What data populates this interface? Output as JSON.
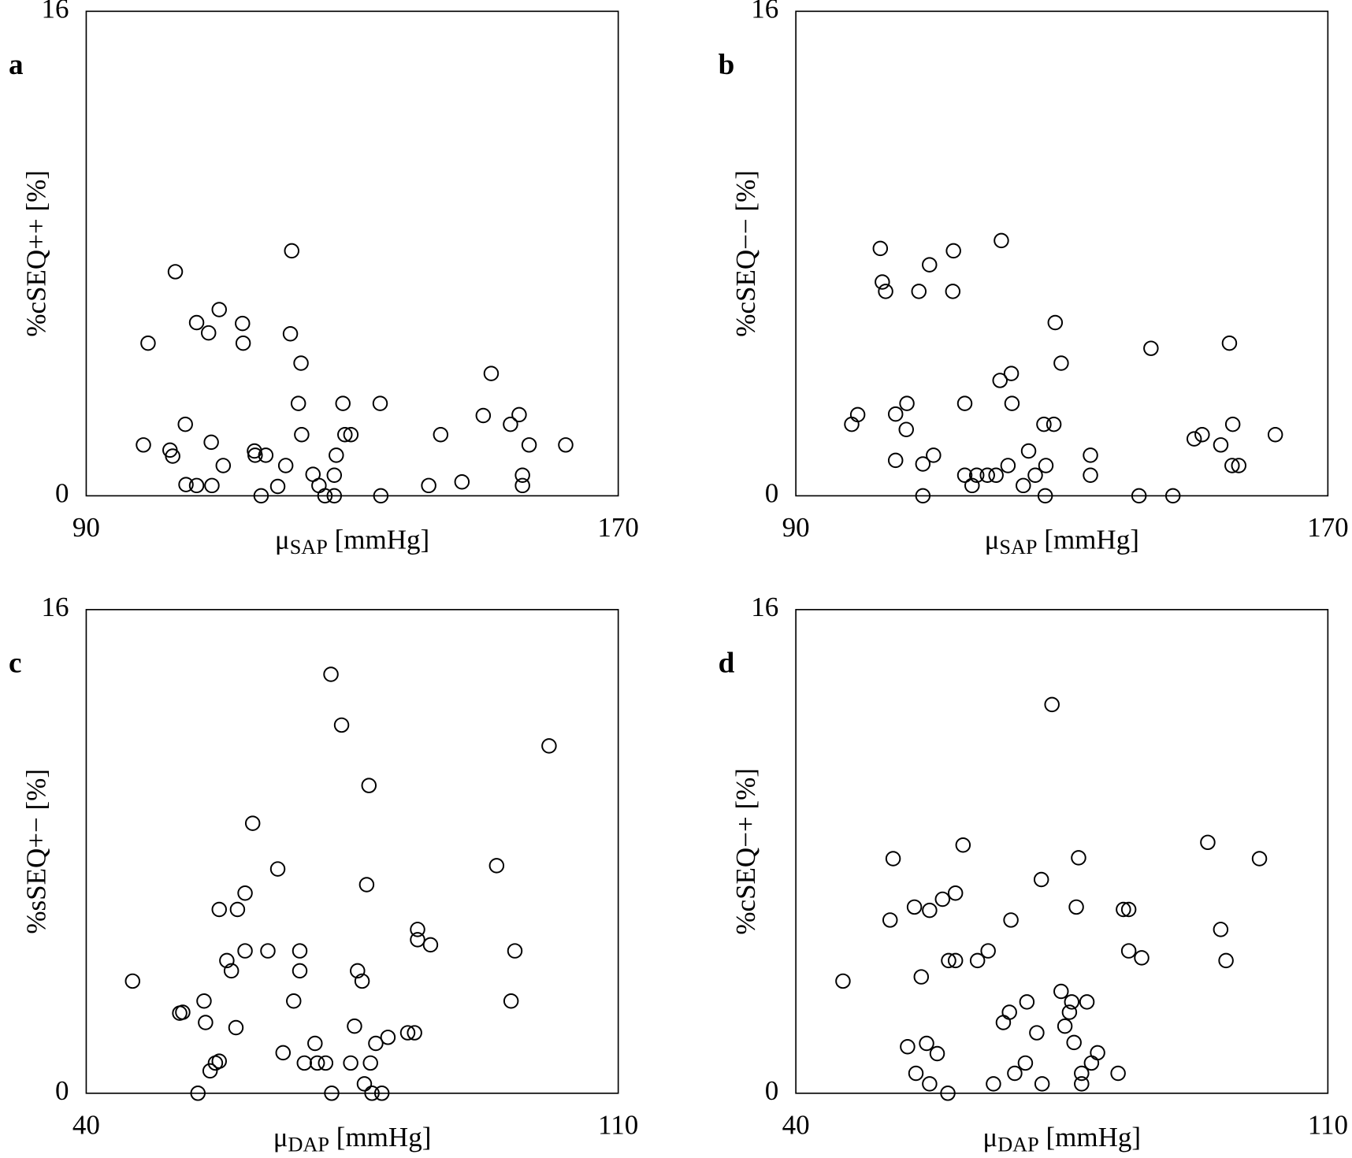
{
  "chart_data": [
    {
      "type": "scatter",
      "panel_label": "a",
      "color": "#000000",
      "xlabel": {
        "symbol": "μ",
        "subscript": "SAP",
        "unit": "[mmHg]"
      },
      "ylabel": "%cSEQ++ [%]",
      "xlim": [
        90,
        170
      ],
      "ylim": [
        0,
        16
      ],
      "xticks": [
        90,
        170
      ],
      "yticks": [
        0,
        16
      ],
      "x": [
        98.6,
        99.3,
        102.6,
        103.0,
        103.4,
        104.9,
        105.0,
        106.6,
        106.6,
        108.4,
        108.8,
        108.9,
        110.0,
        110.6,
        113.5,
        113.6,
        115.3,
        115.4,
        116.3,
        117.0,
        118.8,
        120.0,
        120.9,
        120.7,
        121.9,
        122.3,
        122.4,
        124.1,
        125.0,
        125.9,
        127.3,
        127.3,
        127.6,
        128.6,
        128.9,
        129.8,
        134.2,
        134.3,
        141.5,
        143.3,
        146.5,
        149.7,
        150.9,
        153.8,
        155.1,
        155.6,
        155.6,
        156.6,
        162.1
      ],
      "values": [
        1.68,
        5.04,
        1.51,
        1.31,
        7.4,
        2.36,
        0.37,
        5.72,
        0.34,
        5.38,
        1.77,
        0.34,
        6.15,
        1.0,
        5.69,
        5.04,
        1.48,
        1.34,
        0,
        1.34,
        0.31,
        1.0,
        8.09,
        5.35,
        3.05,
        4.38,
        2.02,
        0.71,
        0.34,
        0,
        0,
        0.68,
        1.34,
        3.05,
        2.02,
        2.02,
        3.05,
        0,
        0.34,
        2.02,
        0.46,
        2.65,
        4.04,
        2.36,
        2.68,
        0.68,
        0.34,
        1.68,
        1.68
      ]
    },
    {
      "type": "scatter",
      "panel_label": "b",
      "color": "#000000",
      "xlabel": {
        "symbol": "μ",
        "subscript": "SAP",
        "unit": "[mmHg]"
      },
      "ylabel": "%cSEQ−− [%]",
      "xlim": [
        90,
        170
      ],
      "ylim": [
        0,
        16
      ],
      "xticks": [
        90,
        170
      ],
      "yticks": [
        0,
        16
      ],
      "x": [
        98.4,
        99.3,
        102.7,
        103.0,
        103.5,
        105.0,
        105.0,
        106.6,
        106.7,
        108.5,
        109.1,
        109.1,
        110.1,
        110.7,
        113.7,
        113.6,
        115.4,
        115.4,
        116.5,
        117.2,
        118.8,
        120.1,
        120.9,
        120.7,
        121.9,
        122.4,
        122.5,
        124.2,
        125.0,
        126.0,
        127.3,
        127.6,
        127.5,
        128.8,
        129.0,
        129.9,
        134.3,
        134.3,
        141.6,
        143.4,
        146.7,
        149.9,
        151.1,
        153.9,
        155.2,
        155.6,
        155.7,
        156.6,
        162.1
      ],
      "values": [
        2.36,
        2.68,
        8.17,
        7.06,
        6.75,
        2.7,
        1.17,
        2.19,
        3.05,
        6.75,
        1.05,
        0,
        7.63,
        1.34,
        8.09,
        6.75,
        3.05,
        0.68,
        0.34,
        0.68,
        0.68,
        0.68,
        8.43,
        3.81,
        1.0,
        4.04,
        3.05,
        0.34,
        1.48,
        0.68,
        2.36,
        1.0,
        0,
        2.36,
        5.72,
        4.38,
        1.34,
        0.68,
        0,
        4.87,
        0,
        1.88,
        2.02,
        1.68,
        5.04,
        1.0,
        2.36,
        1.0,
        2.02
      ]
    },
    {
      "type": "scatter",
      "panel_label": "c",
      "color": "#000000",
      "xlabel": {
        "symbol": "μ",
        "subscript": "DAP",
        "unit": "[mmHg]"
      },
      "ylabel": "%sSEQ+− [%]",
      "xlim": [
        40,
        110
      ],
      "ylim": [
        0,
        16
      ],
      "xticks": [
        40,
        110
      ],
      "yticks": [
        0,
        16
      ],
      "x": [
        46.1,
        52.3,
        52.7,
        54.7,
        55.5,
        55.7,
        56.3,
        57.0,
        57.5,
        57.5,
        58.5,
        59.1,
        59.7,
        59.9,
        60.9,
        60.9,
        61.9,
        63.9,
        65.2,
        65.9,
        67.3,
        68.1,
        68.1,
        68.7,
        70.1,
        70.4,
        71.5,
        72.2,
        72.3,
        73.6,
        74.8,
        75.3,
        75.7,
        76.3,
        76.6,
        76.9,
        77.2,
        77.4,
        77.6,
        78.1,
        78.9,
        79.7,
        82.3,
        83.2,
        83.6,
        83.6,
        85.3,
        94.0,
        95.9,
        96.4,
        100.9
      ],
      "values": [
        3.71,
        2.65,
        2.68,
        0,
        3.05,
        2.34,
        0.74,
        1.0,
        1.06,
        6.08,
        4.39,
        4.05,
        2.17,
        6.08,
        6.62,
        4.71,
        8.93,
        4.71,
        7.42,
        1.34,
        3.05,
        4.71,
        4.05,
        1.0,
        1.65,
        1.0,
        1.0,
        13.86,
        0,
        12.18,
        1.0,
        2.22,
        4.05,
        3.71,
        0.31,
        6.9,
        10.18,
        1.0,
        0,
        1.65,
        0,
        1.85,
        2.0,
        2.0,
        5.42,
        5.08,
        4.91,
        7.53,
        3.05,
        4.71,
        11.49
      ]
    },
    {
      "type": "scatter",
      "panel_label": "d",
      "color": "#000000",
      "xlabel": {
        "symbol": "μ",
        "subscript": "DAP",
        "unit": "[mmHg]"
      },
      "ylabel": "%cSEQ−+ [%]",
      "xlim": [
        40,
        110
      ],
      "ylim": [
        0,
        16
      ],
      "xticks": [
        40,
        110
      ],
      "yticks": [
        0,
        16
      ],
      "x": [
        46.2,
        52.4,
        52.8,
        54.7,
        55.6,
        55.8,
        56.5,
        57.2,
        57.6,
        57.6,
        58.6,
        59.3,
        60.0,
        60.1,
        61.0,
        61.0,
        62.0,
        63.9,
        65.3,
        66.0,
        67.3,
        68.1,
        68.3,
        68.8,
        70.2,
        70.4,
        71.7,
        72.3,
        72.4,
        73.7,
        74.9,
        75.4,
        76.0,
        76.3,
        76.6,
        76.9,
        77.2,
        77.6,
        77.6,
        78.3,
        78.9,
        79.7,
        82.4,
        83.1,
        83.8,
        83.8,
        85.5,
        94.2,
        95.9,
        96.6,
        101.0
      ],
      "values": [
        3.71,
        5.73,
        7.76,
        1.54,
        6.16,
        0.66,
        3.85,
        1.65,
        6.05,
        0.31,
        1.31,
        6.42,
        0,
        4.39,
        4.39,
        6.62,
        8.21,
        4.39,
        4.71,
        0.31,
        2.34,
        2.68,
        5.73,
        0.66,
        1.0,
        3.02,
        2.0,
        7.07,
        0.31,
        12.86,
        3.37,
        2.22,
        2.68,
        3.02,
        1.68,
        6.16,
        7.79,
        0.66,
        0.31,
        3.02,
        1.0,
        1.34,
        0.66,
        6.08,
        6.08,
        4.71,
        4.48,
        8.3,
        5.42,
        4.39,
        7.76
      ]
    }
  ]
}
